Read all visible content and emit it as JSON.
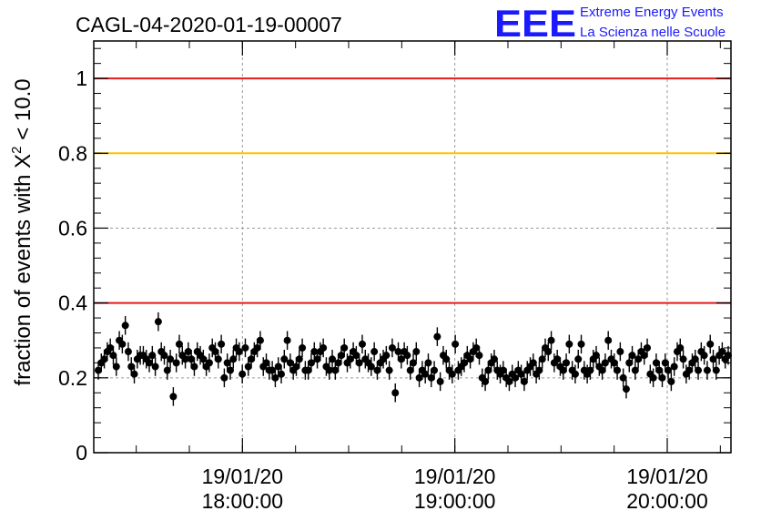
{
  "chart_data": {
    "type": "scatter",
    "title": "CAGL-04-2020-01-19-00007",
    "ylabel_main": "fraction of events with X",
    "ylabel_sup": "2",
    "ylabel_tail": " < 10.0",
    "xlabel": "",
    "x_range_hours": [
      17.3,
      20.3
    ],
    "ylim": [
      0,
      1.1
    ],
    "y_ticks": [
      0,
      0.2,
      0.4,
      0.6,
      0.8,
      1
    ],
    "y_tick_labels": [
      "0",
      "0.2",
      "0.4",
      "0.6",
      "0.8",
      "1"
    ],
    "x_ticks": [
      {
        "hour": 18,
        "date": "19/01/20",
        "time": "18:00:00"
      },
      {
        "hour": 19,
        "date": "19/01/20",
        "time": "19:00:00"
      },
      {
        "hour": 20,
        "date": "19/01/20",
        "time": "20:00:00"
      }
    ],
    "grid": true,
    "reference_lines": [
      {
        "y": 1.0,
        "color": "#e8191b"
      },
      {
        "y": 0.8,
        "color": "#ffc400"
      },
      {
        "y": 0.4,
        "color": "#e8191b"
      }
    ],
    "marker_color": "#000000",
    "points_y": [
      0.22,
      0.24,
      0.25,
      0.27,
      0.28,
      0.26,
      0.23,
      0.3,
      0.29,
      0.34,
      0.27,
      0.23,
      0.21,
      0.25,
      0.26,
      0.26,
      0.25,
      0.24,
      0.26,
      0.23,
      0.35,
      0.27,
      0.26,
      0.22,
      0.25,
      0.15,
      0.24,
      0.29,
      0.26,
      0.25,
      0.27,
      0.25,
      0.23,
      0.27,
      0.26,
      0.25,
      0.23,
      0.24,
      0.28,
      0.27,
      0.25,
      0.29,
      0.2,
      0.24,
      0.22,
      0.25,
      0.28,
      0.27,
      0.21,
      0.28,
      0.23,
      0.25,
      0.27,
      0.28,
      0.3,
      0.23,
      0.24,
      0.22,
      0.22,
      0.2,
      0.23,
      0.21,
      0.25,
      0.3,
      0.24,
      0.22,
      0.23,
      0.25,
      0.28,
      0.22,
      0.22,
      0.24,
      0.27,
      0.25,
      0.27,
      0.28,
      0.23,
      0.22,
      0.25,
      0.22,
      0.24,
      0.26,
      0.28,
      0.24,
      0.25,
      0.27,
      0.26,
      0.24,
      0.29,
      0.25,
      0.24,
      0.23,
      0.27,
      0.22,
      0.24,
      0.25,
      0.26,
      0.22,
      0.28,
      0.16,
      0.27,
      0.25,
      0.27,
      0.26,
      0.22,
      0.24,
      0.27,
      0.2,
      0.22,
      0.21,
      0.24,
      0.2,
      0.22,
      0.31,
      0.19,
      0.26,
      0.25,
      0.22,
      0.21,
      0.29,
      0.22,
      0.23,
      0.24,
      0.26,
      0.25,
      0.27,
      0.28,
      0.26,
      0.2,
      0.19,
      0.22,
      0.24,
      0.25,
      0.22,
      0.21,
      0.22,
      0.2,
      0.19,
      0.21,
      0.2,
      0.22,
      0.21,
      0.19,
      0.22,
      0.23,
      0.24,
      0.21,
      0.22,
      0.25,
      0.28,
      0.27,
      0.3,
      0.24,
      0.25,
      0.23,
      0.22,
      0.24,
      0.29,
      0.22,
      0.21,
      0.25,
      0.29,
      0.22,
      0.21,
      0.22,
      0.25,
      0.26,
      0.23,
      0.22,
      0.24,
      0.3,
      0.25,
      0.24,
      0.22,
      0.27,
      0.2,
      0.17,
      0.24,
      0.26,
      0.22,
      0.25,
      0.27,
      0.26,
      0.28,
      0.21,
      0.2,
      0.24,
      0.22,
      0.2,
      0.24,
      0.22,
      0.19,
      0.23,
      0.27,
      0.28,
      0.25,
      0.21,
      0.22,
      0.24,
      0.25,
      0.22,
      0.27,
      0.26,
      0.22,
      0.29,
      0.25,
      0.22,
      0.26,
      0.27,
      0.25,
      0.26
    ],
    "points_err": 0.025
  },
  "logo": {
    "letters": "EEE",
    "line1": "Extreme Energy Events",
    "line2": "La Scienza nelle Scuole"
  },
  "colors": {
    "red_line": "#e8191b",
    "yellow_line": "#ffc400",
    "grid": "#9a9a9a",
    "logo": "#1a1aff"
  }
}
